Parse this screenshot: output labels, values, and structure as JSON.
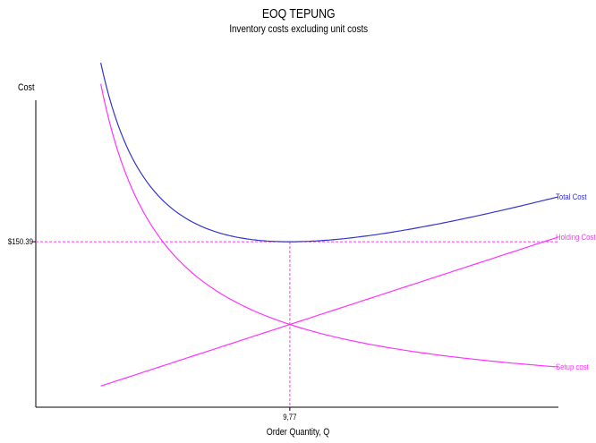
{
  "chart_data": {
    "type": "line",
    "title": "EOQ TEPUNG",
    "subtitle": "Inventory costs excluding unit costs",
    "ylabel": "Cost",
    "xlabel": "Order Quantity, Q",
    "optimum": {
      "q": 9.77,
      "q_label": "9,77",
      "cost": 150.39,
      "cost_label": "$150.39"
    },
    "xlim": [
      0,
      20.1
    ],
    "ylim": [
      0,
      279
    ],
    "series": [
      {
        "name": "Total Cost",
        "color": "#3333cc"
      },
      {
        "name": "Holding Cost",
        "color": "#ff33ff"
      },
      {
        "name": "Setup cost",
        "color": "#ff33ff"
      }
    ],
    "curve_q_range": [
      2.5,
      20.1
    ],
    "guide_color": "#ff33ff",
    "axis_color": "#000000"
  }
}
